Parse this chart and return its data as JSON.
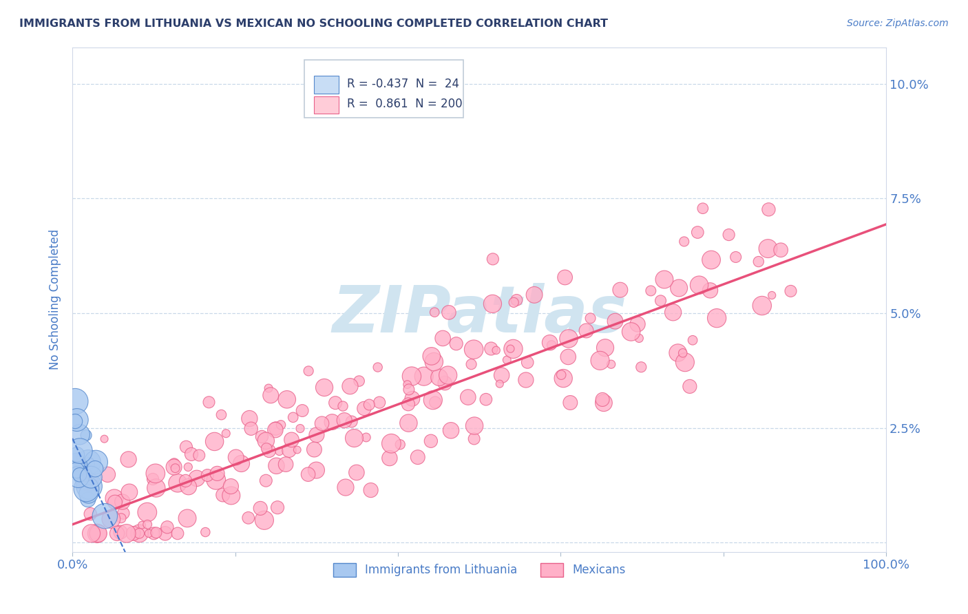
{
  "title": "IMMIGRANTS FROM LITHUANIA VS MEXICAN NO SCHOOLING COMPLETED CORRELATION CHART",
  "source": "Source: ZipAtlas.com",
  "ylabel": "No Schooling Completed",
  "xlim": [
    0.0,
    1.0
  ],
  "ylim": [
    -0.002,
    0.108
  ],
  "legend_r_blue": "-0.437",
  "legend_n_blue": "24",
  "legend_r_pink": "0.861",
  "legend_n_pink": "200",
  "blue_color": "#a8c8f0",
  "blue_edge": "#5588cc",
  "pink_color": "#ffb0c8",
  "pink_edge": "#e8608a",
  "blue_line_color": "#4477cc",
  "pink_line_color": "#e8507a",
  "title_color": "#2c3e6b",
  "axis_label_color": "#4a7cc7",
  "tick_label_color": "#4a7cc7",
  "background_color": "#ffffff",
  "grid_color": "#c8d8e8",
  "legend_box_blue": "#c8ddf5",
  "legend_box_pink": "#ffccd8",
  "watermark_color": "#d0e4f0"
}
